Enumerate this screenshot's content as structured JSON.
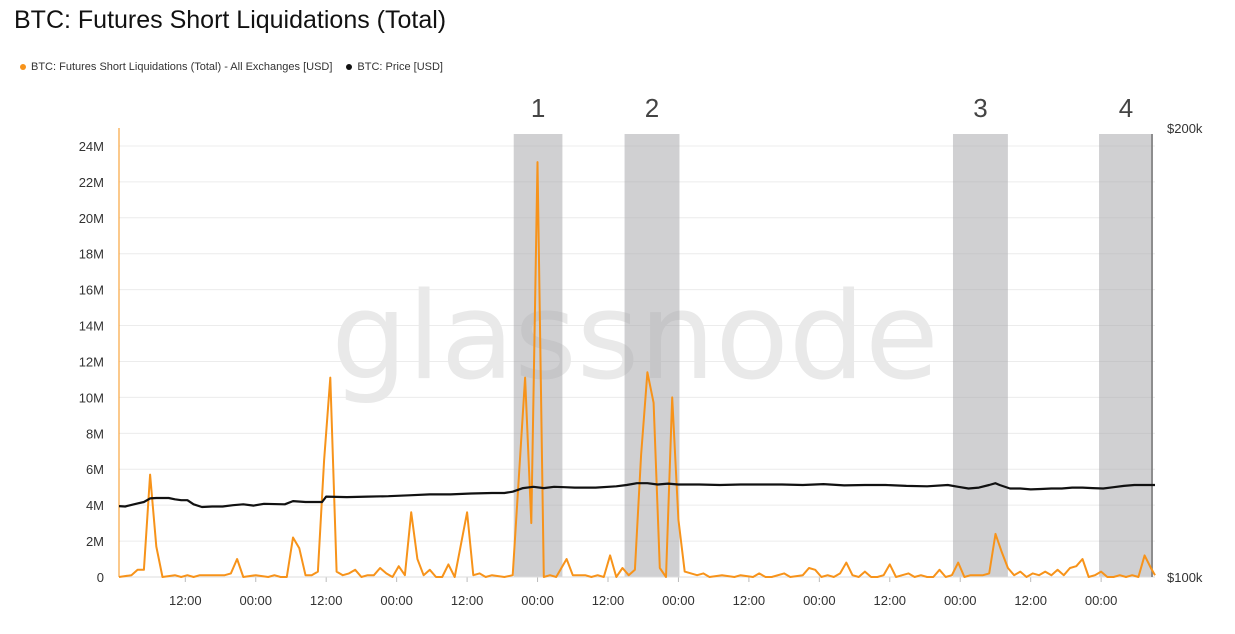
{
  "chart_data": {
    "type": "line",
    "title": "BTC: Futures Short Liquidations (Total)",
    "watermark": "glassnode",
    "legend_position": "top-left",
    "grid": true,
    "colors": {
      "liquidations": "#f7931a",
      "price": "#111111",
      "region": "#a9aaad"
    },
    "y_left": {
      "ticks": [
        0,
        2,
        4,
        6,
        8,
        10,
        12,
        14,
        16,
        18,
        20,
        22,
        24
      ],
      "tick_labels": [
        "0",
        "2M",
        "4M",
        "6M",
        "8M",
        "10M",
        "12M",
        "14M",
        "16M",
        "18M",
        "20M",
        "22M",
        "24M"
      ],
      "range": [
        0,
        25
      ]
    },
    "y_right": {
      "ticks": [
        100000,
        200000
      ],
      "tick_labels": [
        "$100k",
        "$200k"
      ],
      "range": [
        100000,
        200000
      ]
    },
    "x": {
      "range": [
        0,
        1
      ],
      "ticks": [
        0.064,
        0.132,
        0.2,
        0.268,
        0.336,
        0.404,
        0.472,
        0.54,
        0.608,
        0.676,
        0.744,
        0.812,
        0.88,
        0.948
      ],
      "tick_labels": [
        "12:00",
        "00:00",
        "12:00",
        "00:00",
        "12:00",
        "00:00",
        "12:00",
        "00:00",
        "12:00",
        "00:00",
        "12:00",
        "00:00",
        "12:00",
        "00:00"
      ]
    },
    "regions": [
      {
        "label": "1",
        "x0": 0.381,
        "x1": 0.428
      },
      {
        "label": "2",
        "x0": 0.488,
        "x1": 0.541
      },
      {
        "label": "3",
        "x0": 0.805,
        "x1": 0.858
      },
      {
        "label": "4",
        "x0": 0.946,
        "x1": 0.999
      }
    ],
    "series": [
      {
        "name": "BTC: Futures Short Liquidations (Total) - All Exchanges [USD]",
        "color": "#f7931a",
        "points": [
          [
            0.0,
            0.0
          ],
          [
            0.012,
            0.1
          ],
          [
            0.018,
            0.4
          ],
          [
            0.024,
            0.4
          ],
          [
            0.03,
            5.7
          ],
          [
            0.036,
            1.7
          ],
          [
            0.042,
            0.0
          ],
          [
            0.054,
            0.1
          ],
          [
            0.06,
            0.0
          ],
          [
            0.066,
            0.1
          ],
          [
            0.072,
            0.0
          ],
          [
            0.078,
            0.1
          ],
          [
            0.09,
            0.1
          ],
          [
            0.102,
            0.1
          ],
          [
            0.108,
            0.2
          ],
          [
            0.114,
            1.0
          ],
          [
            0.12,
            0.0
          ],
          [
            0.132,
            0.1
          ],
          [
            0.144,
            0.0
          ],
          [
            0.15,
            0.1
          ],
          [
            0.156,
            0.0
          ],
          [
            0.162,
            0.0
          ],
          [
            0.168,
            2.2
          ],
          [
            0.174,
            1.6
          ],
          [
            0.18,
            0.1
          ],
          [
            0.186,
            0.1
          ],
          [
            0.192,
            0.3
          ],
          [
            0.198,
            6.5
          ],
          [
            0.204,
            11.1
          ],
          [
            0.21,
            0.3
          ],
          [
            0.216,
            0.1
          ],
          [
            0.222,
            0.2
          ],
          [
            0.228,
            0.4
          ],
          [
            0.234,
            0.0
          ],
          [
            0.24,
            0.1
          ],
          [
            0.246,
            0.1
          ],
          [
            0.252,
            0.5
          ],
          [
            0.258,
            0.2
          ],
          [
            0.264,
            0.0
          ],
          [
            0.27,
            0.6
          ],
          [
            0.276,
            0.1
          ],
          [
            0.282,
            3.6
          ],
          [
            0.288,
            1.0
          ],
          [
            0.294,
            0.1
          ],
          [
            0.3,
            0.4
          ],
          [
            0.306,
            0.0
          ],
          [
            0.312,
            0.0
          ],
          [
            0.318,
            0.7
          ],
          [
            0.324,
            0.0
          ],
          [
            0.33,
            1.8
          ],
          [
            0.336,
            3.6
          ],
          [
            0.342,
            0.1
          ],
          [
            0.348,
            0.2
          ],
          [
            0.354,
            0.0
          ],
          [
            0.36,
            0.1
          ],
          [
            0.372,
            0.0
          ],
          [
            0.38,
            0.1
          ],
          [
            0.392,
            11.1
          ],
          [
            0.398,
            3.0
          ],
          [
            0.404,
            23.1
          ],
          [
            0.41,
            0.0
          ],
          [
            0.416,
            0.1
          ],
          [
            0.422,
            0.0
          ],
          [
            0.432,
            1.0
          ],
          [
            0.438,
            0.1
          ],
          [
            0.45,
            0.1
          ],
          [
            0.456,
            0.0
          ],
          [
            0.462,
            0.1
          ],
          [
            0.468,
            0.0
          ],
          [
            0.474,
            1.2
          ],
          [
            0.48,
            0.0
          ],
          [
            0.486,
            0.5
          ],
          [
            0.492,
            0.1
          ],
          [
            0.498,
            0.4
          ],
          [
            0.504,
            6.8
          ],
          [
            0.51,
            11.4
          ],
          [
            0.516,
            9.7
          ],
          [
            0.522,
            0.5
          ],
          [
            0.528,
            0.0
          ],
          [
            0.534,
            10.0
          ],
          [
            0.54,
            3.2
          ],
          [
            0.546,
            0.3
          ],
          [
            0.558,
            0.1
          ],
          [
            0.564,
            0.2
          ],
          [
            0.57,
            0.0
          ],
          [
            0.582,
            0.1
          ],
          [
            0.594,
            0.0
          ],
          [
            0.6,
            0.1
          ],
          [
            0.612,
            0.0
          ],
          [
            0.618,
            0.2
          ],
          [
            0.624,
            0.0
          ],
          [
            0.63,
            0.0
          ],
          [
            0.642,
            0.2
          ],
          [
            0.648,
            0.0
          ],
          [
            0.66,
            0.1
          ],
          [
            0.666,
            0.5
          ],
          [
            0.672,
            0.4
          ],
          [
            0.678,
            0.0
          ],
          [
            0.684,
            0.1
          ],
          [
            0.69,
            0.0
          ],
          [
            0.696,
            0.2
          ],
          [
            0.702,
            0.8
          ],
          [
            0.708,
            0.1
          ],
          [
            0.714,
            0.0
          ],
          [
            0.72,
            0.3
          ],
          [
            0.726,
            0.0
          ],
          [
            0.732,
            0.0
          ],
          [
            0.738,
            0.1
          ],
          [
            0.744,
            0.7
          ],
          [
            0.75,
            0.0
          ],
          [
            0.756,
            0.1
          ],
          [
            0.762,
            0.2
          ],
          [
            0.768,
            0.0
          ],
          [
            0.774,
            0.1
          ],
          [
            0.78,
            0.0
          ],
          [
            0.786,
            0.0
          ],
          [
            0.792,
            0.4
          ],
          [
            0.798,
            0.0
          ],
          [
            0.804,
            0.1
          ],
          [
            0.81,
            0.8
          ],
          [
            0.816,
            0.0
          ],
          [
            0.822,
            0.1
          ],
          [
            0.834,
            0.1
          ],
          [
            0.84,
            0.2
          ],
          [
            0.846,
            2.4
          ],
          [
            0.852,
            1.4
          ],
          [
            0.858,
            0.5
          ],
          [
            0.864,
            0.1
          ],
          [
            0.87,
            0.3
          ],
          [
            0.876,
            0.0
          ],
          [
            0.882,
            0.2
          ],
          [
            0.888,
            0.1
          ],
          [
            0.894,
            0.3
          ],
          [
            0.9,
            0.1
          ],
          [
            0.906,
            0.4
          ],
          [
            0.912,
            0.1
          ],
          [
            0.918,
            0.5
          ],
          [
            0.924,
            0.6
          ],
          [
            0.93,
            1.0
          ],
          [
            0.936,
            0.0
          ],
          [
            0.942,
            0.1
          ],
          [
            0.948,
            0.3
          ],
          [
            0.954,
            0.0
          ],
          [
            0.96,
            0.0
          ],
          [
            0.966,
            0.1
          ],
          [
            0.972,
            0.0
          ],
          [
            0.978,
            0.1
          ],
          [
            0.984,
            0.0
          ],
          [
            0.99,
            1.2
          ],
          [
            0.996,
            0.5
          ],
          [
            1.0,
            0.1
          ]
        ]
      },
      {
        "name": "BTC: Price [USD]",
        "color": "#111111",
        "points": [
          [
            0.0,
            115800
          ],
          [
            0.006,
            115700
          ],
          [
            0.018,
            116400
          ],
          [
            0.024,
            116700
          ],
          [
            0.03,
            117500
          ],
          [
            0.036,
            117600
          ],
          [
            0.048,
            117600
          ],
          [
            0.054,
            117300
          ],
          [
            0.06,
            117100
          ],
          [
            0.066,
            117100
          ],
          [
            0.072,
            116200
          ],
          [
            0.08,
            115600
          ],
          [
            0.09,
            115700
          ],
          [
            0.1,
            115700
          ],
          [
            0.11,
            116000
          ],
          [
            0.12,
            116200
          ],
          [
            0.13,
            115900
          ],
          [
            0.14,
            116300
          ],
          [
            0.16,
            116200
          ],
          [
            0.168,
            116900
          ],
          [
            0.18,
            116700
          ],
          [
            0.196,
            116700
          ],
          [
            0.2,
            117900
          ],
          [
            0.22,
            117800
          ],
          [
            0.24,
            117900
          ],
          [
            0.26,
            118000
          ],
          [
            0.28,
            118200
          ],
          [
            0.3,
            118400
          ],
          [
            0.32,
            118400
          ],
          [
            0.34,
            118600
          ],
          [
            0.36,
            118700
          ],
          [
            0.372,
            118700
          ],
          [
            0.38,
            119000
          ],
          [
            0.39,
            119800
          ],
          [
            0.4,
            120100
          ],
          [
            0.41,
            119800
          ],
          [
            0.42,
            120100
          ],
          [
            0.43,
            120000
          ],
          [
            0.44,
            119900
          ],
          [
            0.46,
            119900
          ],
          [
            0.48,
            120200
          ],
          [
            0.49,
            120500
          ],
          [
            0.5,
            120900
          ],
          [
            0.51,
            120900
          ],
          [
            0.52,
            120600
          ],
          [
            0.53,
            120800
          ],
          [
            0.54,
            120600
          ],
          [
            0.56,
            120600
          ],
          [
            0.58,
            120500
          ],
          [
            0.6,
            120600
          ],
          [
            0.62,
            120600
          ],
          [
            0.64,
            120600
          ],
          [
            0.66,
            120500
          ],
          [
            0.68,
            120700
          ],
          [
            0.7,
            120400
          ],
          [
            0.72,
            120500
          ],
          [
            0.74,
            120500
          ],
          [
            0.76,
            120300
          ],
          [
            0.78,
            120200
          ],
          [
            0.8,
            120500
          ],
          [
            0.81,
            120100
          ],
          [
            0.82,
            119700
          ],
          [
            0.83,
            119900
          ],
          [
            0.84,
            120500
          ],
          [
            0.846,
            120900
          ],
          [
            0.85,
            120500
          ],
          [
            0.86,
            119700
          ],
          [
            0.87,
            119700
          ],
          [
            0.88,
            119500
          ],
          [
            0.89,
            119600
          ],
          [
            0.9,
            119700
          ],
          [
            0.91,
            119700
          ],
          [
            0.92,
            119900
          ],
          [
            0.93,
            119900
          ],
          [
            0.94,
            119800
          ],
          [
            0.95,
            119700
          ],
          [
            0.96,
            120000
          ],
          [
            0.97,
            120300
          ],
          [
            0.98,
            120500
          ],
          [
            0.99,
            120500
          ],
          [
            1.0,
            120500
          ]
        ]
      }
    ]
  },
  "legend": {
    "items": [
      {
        "label": "BTC: Futures Short Liquidations (Total) - All Exchanges [USD]",
        "color": "#f7931a"
      },
      {
        "label": "BTC: Price [USD]",
        "color": "#111111"
      }
    ]
  }
}
